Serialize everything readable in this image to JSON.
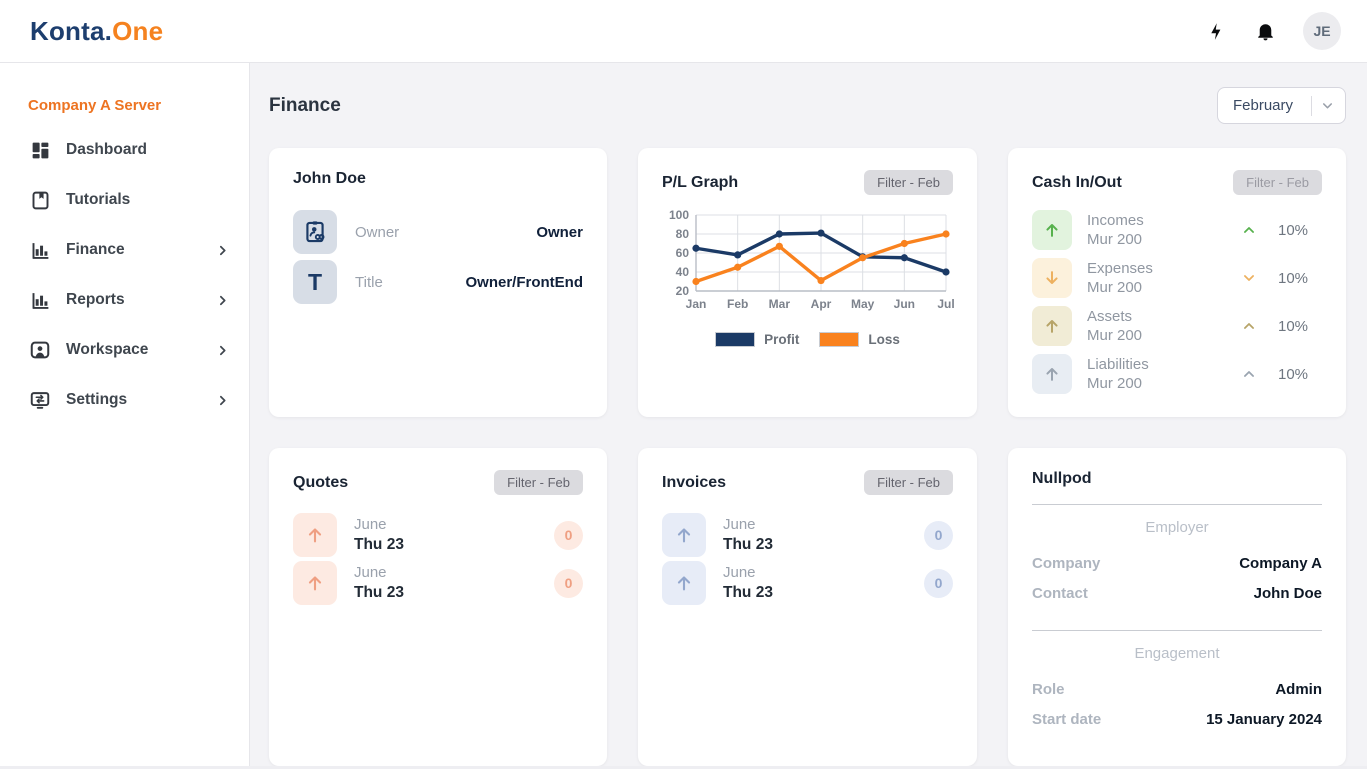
{
  "brand": {
    "prefix": "Konta.",
    "suffix": "One"
  },
  "topbar": {
    "avatar_initials": "JE",
    "icon_names": [
      "flash-icon",
      "bell-icon"
    ]
  },
  "sidebar": {
    "server_label": "Company A Server",
    "items": [
      {
        "label": "Dashboard",
        "icon": "dashboard-icon",
        "submenu": false
      },
      {
        "label": "Tutorials",
        "icon": "book-icon",
        "submenu": false
      },
      {
        "label": "Finance",
        "icon": "bar-chart-icon",
        "submenu": true
      },
      {
        "label": "Reports",
        "icon": "bar-chart-icon",
        "submenu": true
      },
      {
        "label": "Workspace",
        "icon": "person-badge-icon",
        "submenu": true
      },
      {
        "label": "Settings",
        "icon": "monitor-transfer-icon",
        "submenu": true
      }
    ]
  },
  "page": {
    "title": "Finance",
    "month_selector_value": "February"
  },
  "profile_card": {
    "title": "John Doe",
    "rows": [
      {
        "icon": "id-badge-icon",
        "label": "Owner",
        "value": "Owner"
      },
      {
        "icon": "letter-t-icon",
        "label": "Title",
        "value": "Owner/FrontEnd"
      }
    ]
  },
  "pl_card": {
    "title": "P/L Graph",
    "filter_label": "Filter - Feb"
  },
  "chart_data": {
    "type": "line",
    "title": "P/L Graph",
    "x": [
      "Jan",
      "Feb",
      "Mar",
      "Apr",
      "May",
      "Jun",
      "Jul"
    ],
    "series": [
      {
        "name": "Profit",
        "color": "#1b3a66",
        "values": [
          65,
          58,
          80,
          81,
          56,
          55,
          40
        ]
      },
      {
        "name": "Loss",
        "color": "#f9821e",
        "values": [
          30,
          45,
          67,
          31,
          55,
          70,
          80
        ]
      }
    ],
    "ylim": [
      20,
      100
    ],
    "yticks": [
      20,
      40,
      60,
      80,
      100
    ],
    "grid": true,
    "legend_position": "bottom"
  },
  "cash_card": {
    "title": "Cash In/Out",
    "filter_label": "Filter - Feb",
    "rows": [
      {
        "name": "Incomes",
        "amount": "Mur 200",
        "percent": "10%",
        "direction": "up",
        "trend": "up",
        "accent": "#57b14d",
        "accent_bg": "#e2f3de"
      },
      {
        "name": "Expenses",
        "amount": "Mur 200",
        "percent": "10%",
        "direction": "down",
        "trend": "down",
        "accent": "#edb160",
        "accent_bg": "#fcf1dc"
      },
      {
        "name": "Assets",
        "amount": "Mur 200",
        "percent": "10%",
        "direction": "up",
        "trend": "up",
        "accent": "#b7a468",
        "accent_bg": "#f1ecd6"
      },
      {
        "name": "Liabilities",
        "amount": "Mur 200",
        "percent": "10%",
        "direction": "up",
        "trend": "up",
        "accent": "#9aa4b0",
        "accent_bg": "#e8edf3"
      }
    ]
  },
  "quotes_card": {
    "title": "Quotes",
    "filter_label": "Filter - Feb",
    "accent": "#ef9f82",
    "accent_bg": "#fdeae2",
    "rows": [
      {
        "month": "June",
        "day": "Thu 23",
        "count": "0"
      },
      {
        "month": "June",
        "day": "Thu 23",
        "count": "0"
      }
    ]
  },
  "invoices_card": {
    "title": "Invoices",
    "filter_label": "Filter - Feb",
    "accent": "#93a7cd",
    "accent_bg": "#e7ecf7",
    "rows": [
      {
        "month": "June",
        "day": "Thu 23",
        "count": "0"
      },
      {
        "month": "June",
        "day": "Thu 23",
        "count": "0"
      }
    ]
  },
  "nullpod_card": {
    "title": "Nullpod",
    "sections": [
      {
        "heading": "Employer",
        "rows": [
          {
            "label": "Company",
            "value": "Company A"
          },
          {
            "label": "Contact",
            "value": "John Doe"
          }
        ]
      },
      {
        "heading": "Engagement",
        "rows": [
          {
            "label": "Role",
            "value": "Admin"
          },
          {
            "label": "Start date",
            "value": "15 January 2024"
          }
        ]
      }
    ]
  },
  "colors": {
    "brand_navy": "#1d3e6e",
    "brand_orange": "#f5821f",
    "page_bg": "#f3f3f6",
    "card_bg": "#ffffff",
    "sidebar_accent": "#ed7422",
    "profit_line": "#1b3a66",
    "loss_line": "#f9821e"
  }
}
